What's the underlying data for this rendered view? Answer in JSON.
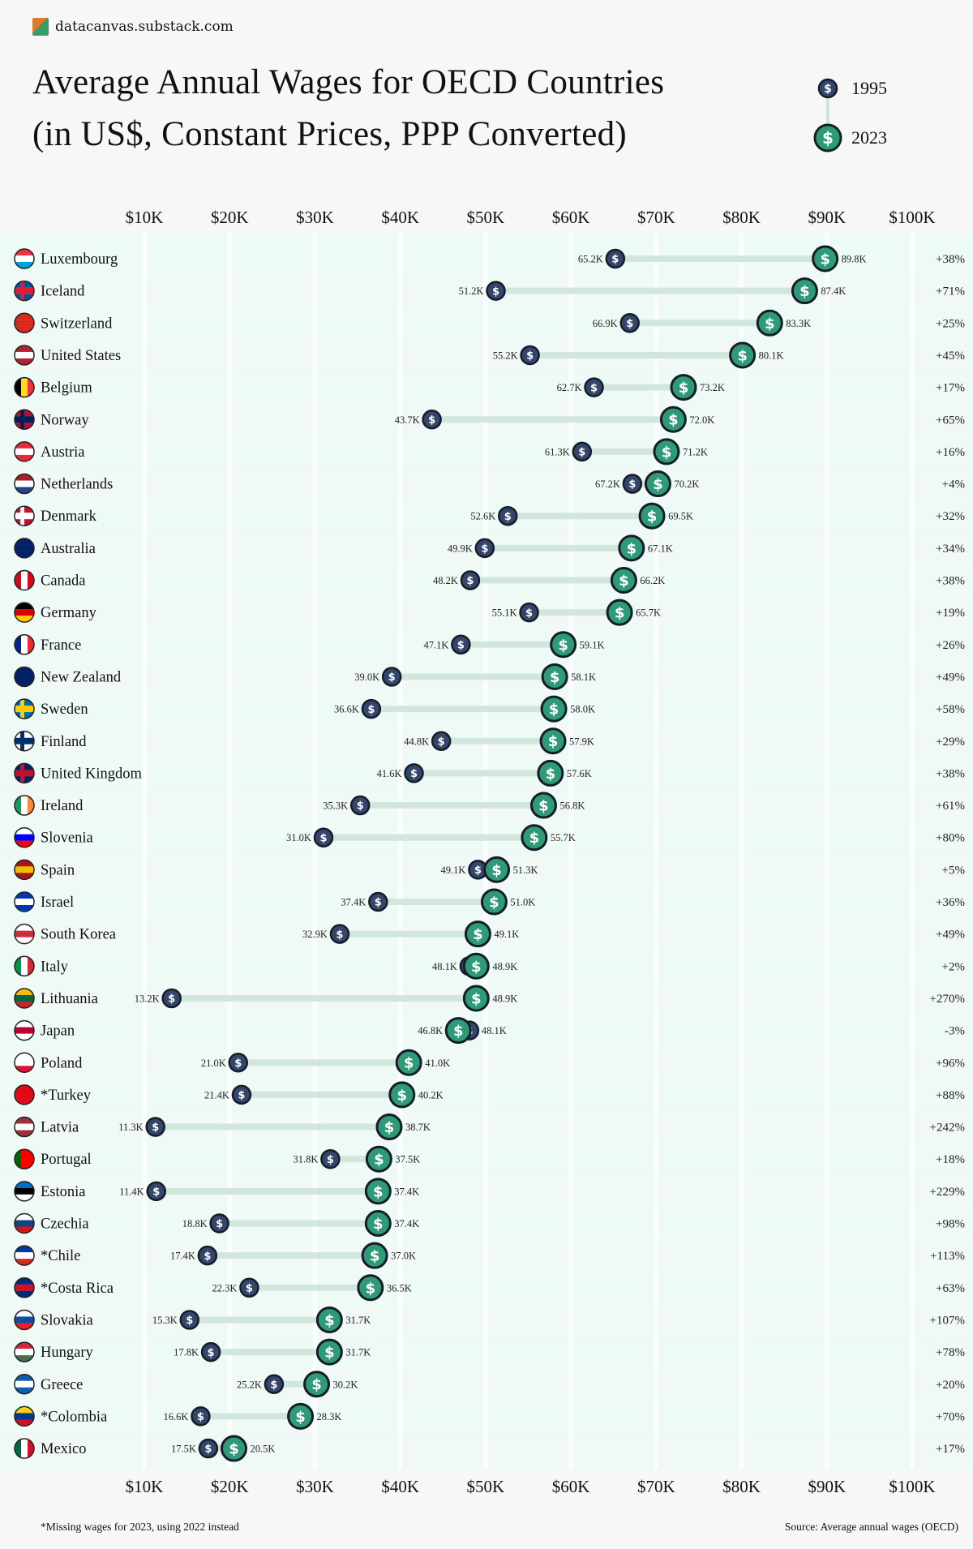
{
  "site": "datacanvas.substack.com",
  "title_line1": "Average Annual Wages for OECD Countries",
  "title_line2": "(in US$, Constant Prices, PPP Converted)",
  "legend": [
    {
      "label": "1995",
      "color": "#34466b"
    },
    {
      "label": "2023",
      "color": "#2f9a77"
    }
  ],
  "footnote": "*Missing wages for 2023, using 2022 instead",
  "source": "Source: Average annual wages (OECD)",
  "colors": {
    "background": "#f7f7f7",
    "chart_bg": "#eefaf6",
    "coin_1995": "#34466b",
    "coin_2023": "#2f9a77",
    "connector": "#d2e6de",
    "negative": "#c0263a"
  },
  "chart_data": {
    "type": "dumbbell",
    "title": "Average Annual Wages for OECD Countries (in US$, Constant Prices, PPP Converted)",
    "xlim": [
      10,
      100
    ],
    "x_ticks": [
      "$10K",
      "$20K",
      "$30K",
      "$40K",
      "$50K",
      "$60K",
      "$70K",
      "$80K",
      "$90K",
      "$100K"
    ],
    "x_tick_values": [
      10,
      20,
      30,
      40,
      50,
      60,
      70,
      80,
      90,
      100
    ],
    "units": "thousand US$",
    "series_names": [
      "1995",
      "2023"
    ],
    "rows": [
      {
        "country": "Luxembourg",
        "v1995": 65.2,
        "v2023": 89.8,
        "l1995": "65.2K",
        "l2023": "89.8K",
        "change": "+38%",
        "flag": [
          "#ef3340",
          "#ffffff",
          "#00a3e0"
        ]
      },
      {
        "country": "Iceland",
        "v1995": 51.2,
        "v2023": 87.4,
        "l1995": "51.2K",
        "l2023": "87.4K",
        "change": "+71%",
        "flag": [
          "#02529c",
          "#dc1e35",
          "#02529c"
        ],
        "cross": true
      },
      {
        "country": "Switzerland",
        "v1995": 66.9,
        "v2023": 83.3,
        "l1995": "66.9K",
        "l2023": "83.3K",
        "change": "+25%",
        "flag": [
          "#da291c",
          "#da291c",
          "#da291c"
        ]
      },
      {
        "country": "United States",
        "v1995": 55.2,
        "v2023": 80.1,
        "l1995": "55.2K",
        "l2023": "80.1K",
        "change": "+45%",
        "flag": [
          "#b22234",
          "#ffffff",
          "#b22234"
        ]
      },
      {
        "country": "Belgium",
        "v1995": 62.7,
        "v2023": 73.2,
        "l1995": "62.7K",
        "l2023": "73.2K",
        "change": "+17%",
        "flag": [
          "#000000",
          "#fdda24",
          "#ef3340"
        ],
        "vertical": true
      },
      {
        "country": "Norway",
        "v1995": 43.7,
        "v2023": 72.0,
        "l1995": "43.7K",
        "l2023": "72.0K",
        "change": "+65%",
        "flag": [
          "#ba0c2f",
          "#00205b",
          "#ba0c2f"
        ],
        "cross": true
      },
      {
        "country": "Austria",
        "v1995": 61.3,
        "v2023": 71.2,
        "l1995": "61.3K",
        "l2023": "71.2K",
        "change": "+16%",
        "flag": [
          "#ed2939",
          "#ffffff",
          "#ed2939"
        ]
      },
      {
        "country": "Netherlands",
        "v1995": 67.2,
        "v2023": 70.2,
        "l1995": "67.2K",
        "l2023": "70.2K",
        "change": "+4%",
        "flag": [
          "#ae1c28",
          "#ffffff",
          "#21468b"
        ]
      },
      {
        "country": "Denmark",
        "v1995": 52.6,
        "v2023": 69.5,
        "l1995": "52.6K",
        "l2023": "69.5K",
        "change": "+32%",
        "flag": [
          "#c8102e",
          "#ffffff",
          "#c8102e"
        ],
        "cross": true
      },
      {
        "country": "Australia",
        "v1995": 49.9,
        "v2023": 67.1,
        "l1995": "49.9K",
        "l2023": "67.1K",
        "change": "+34%",
        "flag": [
          "#012169",
          "#012169",
          "#012169"
        ]
      },
      {
        "country": "Canada",
        "v1995": 48.2,
        "v2023": 66.2,
        "l1995": "48.2K",
        "l2023": "66.2K",
        "change": "+38%",
        "flag": [
          "#d80621",
          "#ffffff",
          "#d80621"
        ],
        "vertical": true
      },
      {
        "country": "Germany",
        "v1995": 55.1,
        "v2023": 65.7,
        "l1995": "55.1K",
        "l2023": "65.7K",
        "change": "+19%",
        "flag": [
          "#000000",
          "#dd0000",
          "#ffce00"
        ]
      },
      {
        "country": "France",
        "v1995": 47.1,
        "v2023": 59.1,
        "l1995": "47.1K",
        "l2023": "59.1K",
        "change": "+26%",
        "flag": [
          "#002395",
          "#ffffff",
          "#ed2939"
        ],
        "vertical": true
      },
      {
        "country": "New Zealand",
        "v1995": 39.0,
        "v2023": 58.1,
        "l1995": "39.0K",
        "l2023": "58.1K",
        "change": "+49%",
        "flag": [
          "#012169",
          "#012169",
          "#012169"
        ]
      },
      {
        "country": "Sweden",
        "v1995": 36.6,
        "v2023": 58.0,
        "l1995": "36.6K",
        "l2023": "58.0K",
        "change": "+58%",
        "flag": [
          "#006aa7",
          "#fecc00",
          "#006aa7"
        ],
        "cross": true
      },
      {
        "country": "Finland",
        "v1995": 44.8,
        "v2023": 57.9,
        "l1995": "44.8K",
        "l2023": "57.9K",
        "change": "+29%",
        "flag": [
          "#ffffff",
          "#002f6c",
          "#ffffff"
        ],
        "cross": true
      },
      {
        "country": "United Kingdom",
        "v1995": 41.6,
        "v2023": 57.6,
        "l1995": "41.6K",
        "l2023": "57.6K",
        "change": "+38%",
        "flag": [
          "#012169",
          "#c8102e",
          "#012169"
        ],
        "cross": true
      },
      {
        "country": "Ireland",
        "v1995": 35.3,
        "v2023": 56.8,
        "l1995": "35.3K",
        "l2023": "56.8K",
        "change": "+61%",
        "flag": [
          "#169b62",
          "#ffffff",
          "#ff883e"
        ],
        "vertical": true
      },
      {
        "country": "Slovenia",
        "v1995": 31.0,
        "v2023": 55.7,
        "l1995": "31.0K",
        "l2023": "55.7K",
        "change": "+80%",
        "flag": [
          "#ffffff",
          "#0000ff",
          "#ff0000"
        ]
      },
      {
        "country": "Spain",
        "v1995": 49.1,
        "v2023": 51.3,
        "l1995": "49.1K",
        "l2023": "51.3K",
        "change": "+5%",
        "flag": [
          "#aa151b",
          "#f1bf00",
          "#aa151b"
        ]
      },
      {
        "country": "Israel",
        "v1995": 37.4,
        "v2023": 51.0,
        "l1995": "37.4K",
        "l2023": "51.0K",
        "change": "+36%",
        "flag": [
          "#0038b8",
          "#ffffff",
          "#0038b8"
        ]
      },
      {
        "country": "South Korea",
        "v1995": 32.9,
        "v2023": 49.1,
        "l1995": "32.9K",
        "l2023": "49.1K",
        "change": "+49%",
        "flag": [
          "#ffffff",
          "#cd2e3a",
          "#ffffff"
        ]
      },
      {
        "country": "Italy",
        "v1995": 48.1,
        "v2023": 48.9,
        "l1995": "48.1K",
        "l2023": "48.9K",
        "change": "+2%",
        "flag": [
          "#009246",
          "#ffffff",
          "#ce2b37"
        ],
        "vertical": true
      },
      {
        "country": "Lithuania",
        "v1995": 13.2,
        "v2023": 48.9,
        "l1995": "13.2K",
        "l2023": "48.9K",
        "change": "+270%",
        "flag": [
          "#fdb913",
          "#006a44",
          "#c1272d"
        ]
      },
      {
        "country": "Japan",
        "v1995": 48.1,
        "v2023": 46.8,
        "l1995": "48.1K",
        "l2023": "46.8K",
        "change": "-3%",
        "flag": [
          "#ffffff",
          "#bc002d",
          "#ffffff"
        ]
      },
      {
        "country": "Poland",
        "v1995": 21.0,
        "v2023": 41.0,
        "l1995": "21.0K",
        "l2023": "41.0K",
        "change": "+96%",
        "flag": [
          "#ffffff",
          "#ffffff",
          "#dc143c"
        ]
      },
      {
        "country": "*Turkey",
        "v1995": 21.4,
        "v2023": 40.2,
        "l1995": "21.4K",
        "l2023": "40.2K",
        "change": "+88%",
        "flag": [
          "#e30a17",
          "#e30a17",
          "#e30a17"
        ]
      },
      {
        "country": "Latvia",
        "v1995": 11.3,
        "v2023": 38.7,
        "l1995": "11.3K",
        "l2023": "38.7K",
        "change": "+242%",
        "flag": [
          "#9e3039",
          "#ffffff",
          "#9e3039"
        ]
      },
      {
        "country": "Portugal",
        "v1995": 31.8,
        "v2023": 37.5,
        "l1995": "31.8K",
        "l2023": "37.5K",
        "change": "+18%",
        "flag": [
          "#006600",
          "#ff0000",
          "#ff0000"
        ],
        "vertical": true
      },
      {
        "country": "Estonia",
        "v1995": 11.4,
        "v2023": 37.4,
        "l1995": "11.4K",
        "l2023": "37.4K",
        "change": "+229%",
        "flag": [
          "#0072ce",
          "#000000",
          "#ffffff"
        ]
      },
      {
        "country": "Czechia",
        "v1995": 18.8,
        "v2023": 37.4,
        "l1995": "18.8K",
        "l2023": "37.4K",
        "change": "+98%",
        "flag": [
          "#ffffff",
          "#11457e",
          "#d7141a"
        ]
      },
      {
        "country": "*Chile",
        "v1995": 17.4,
        "v2023": 37.0,
        "l1995": "17.4K",
        "l2023": "37.0K",
        "change": "+113%",
        "flag": [
          "#0039a6",
          "#ffffff",
          "#d52b1e"
        ]
      },
      {
        "country": "*Costa Rica",
        "v1995": 22.3,
        "v2023": 36.5,
        "l1995": "22.3K",
        "l2023": "36.5K",
        "change": "+63%",
        "flag": [
          "#002b7f",
          "#ce1126",
          "#002b7f"
        ]
      },
      {
        "country": "Slovakia",
        "v1995": 15.3,
        "v2023": 31.7,
        "l1995": "15.3K",
        "l2023": "31.7K",
        "change": "+107%",
        "flag": [
          "#ffffff",
          "#0b4ea2",
          "#ee1c25"
        ]
      },
      {
        "country": "Hungary",
        "v1995": 17.8,
        "v2023": 31.7,
        "l1995": "17.8K",
        "l2023": "31.7K",
        "change": "+78%",
        "flag": [
          "#ce2939",
          "#ffffff",
          "#477050"
        ]
      },
      {
        "country": "Greece",
        "v1995": 25.2,
        "v2023": 30.2,
        "l1995": "25.2K",
        "l2023": "30.2K",
        "change": "+20%",
        "flag": [
          "#0d5eaf",
          "#ffffff",
          "#0d5eaf"
        ]
      },
      {
        "country": "*Colombia",
        "v1995": 16.6,
        "v2023": 28.3,
        "l1995": "16.6K",
        "l2023": "28.3K",
        "change": "+70%",
        "flag": [
          "#fcd116",
          "#003893",
          "#ce1126"
        ]
      },
      {
        "country": "Mexico",
        "v1995": 17.5,
        "v2023": 20.5,
        "l1995": "17.5K",
        "l2023": "20.5K",
        "change": "+17%",
        "flag": [
          "#006847",
          "#ffffff",
          "#ce1126"
        ],
        "vertical": true
      }
    ]
  }
}
